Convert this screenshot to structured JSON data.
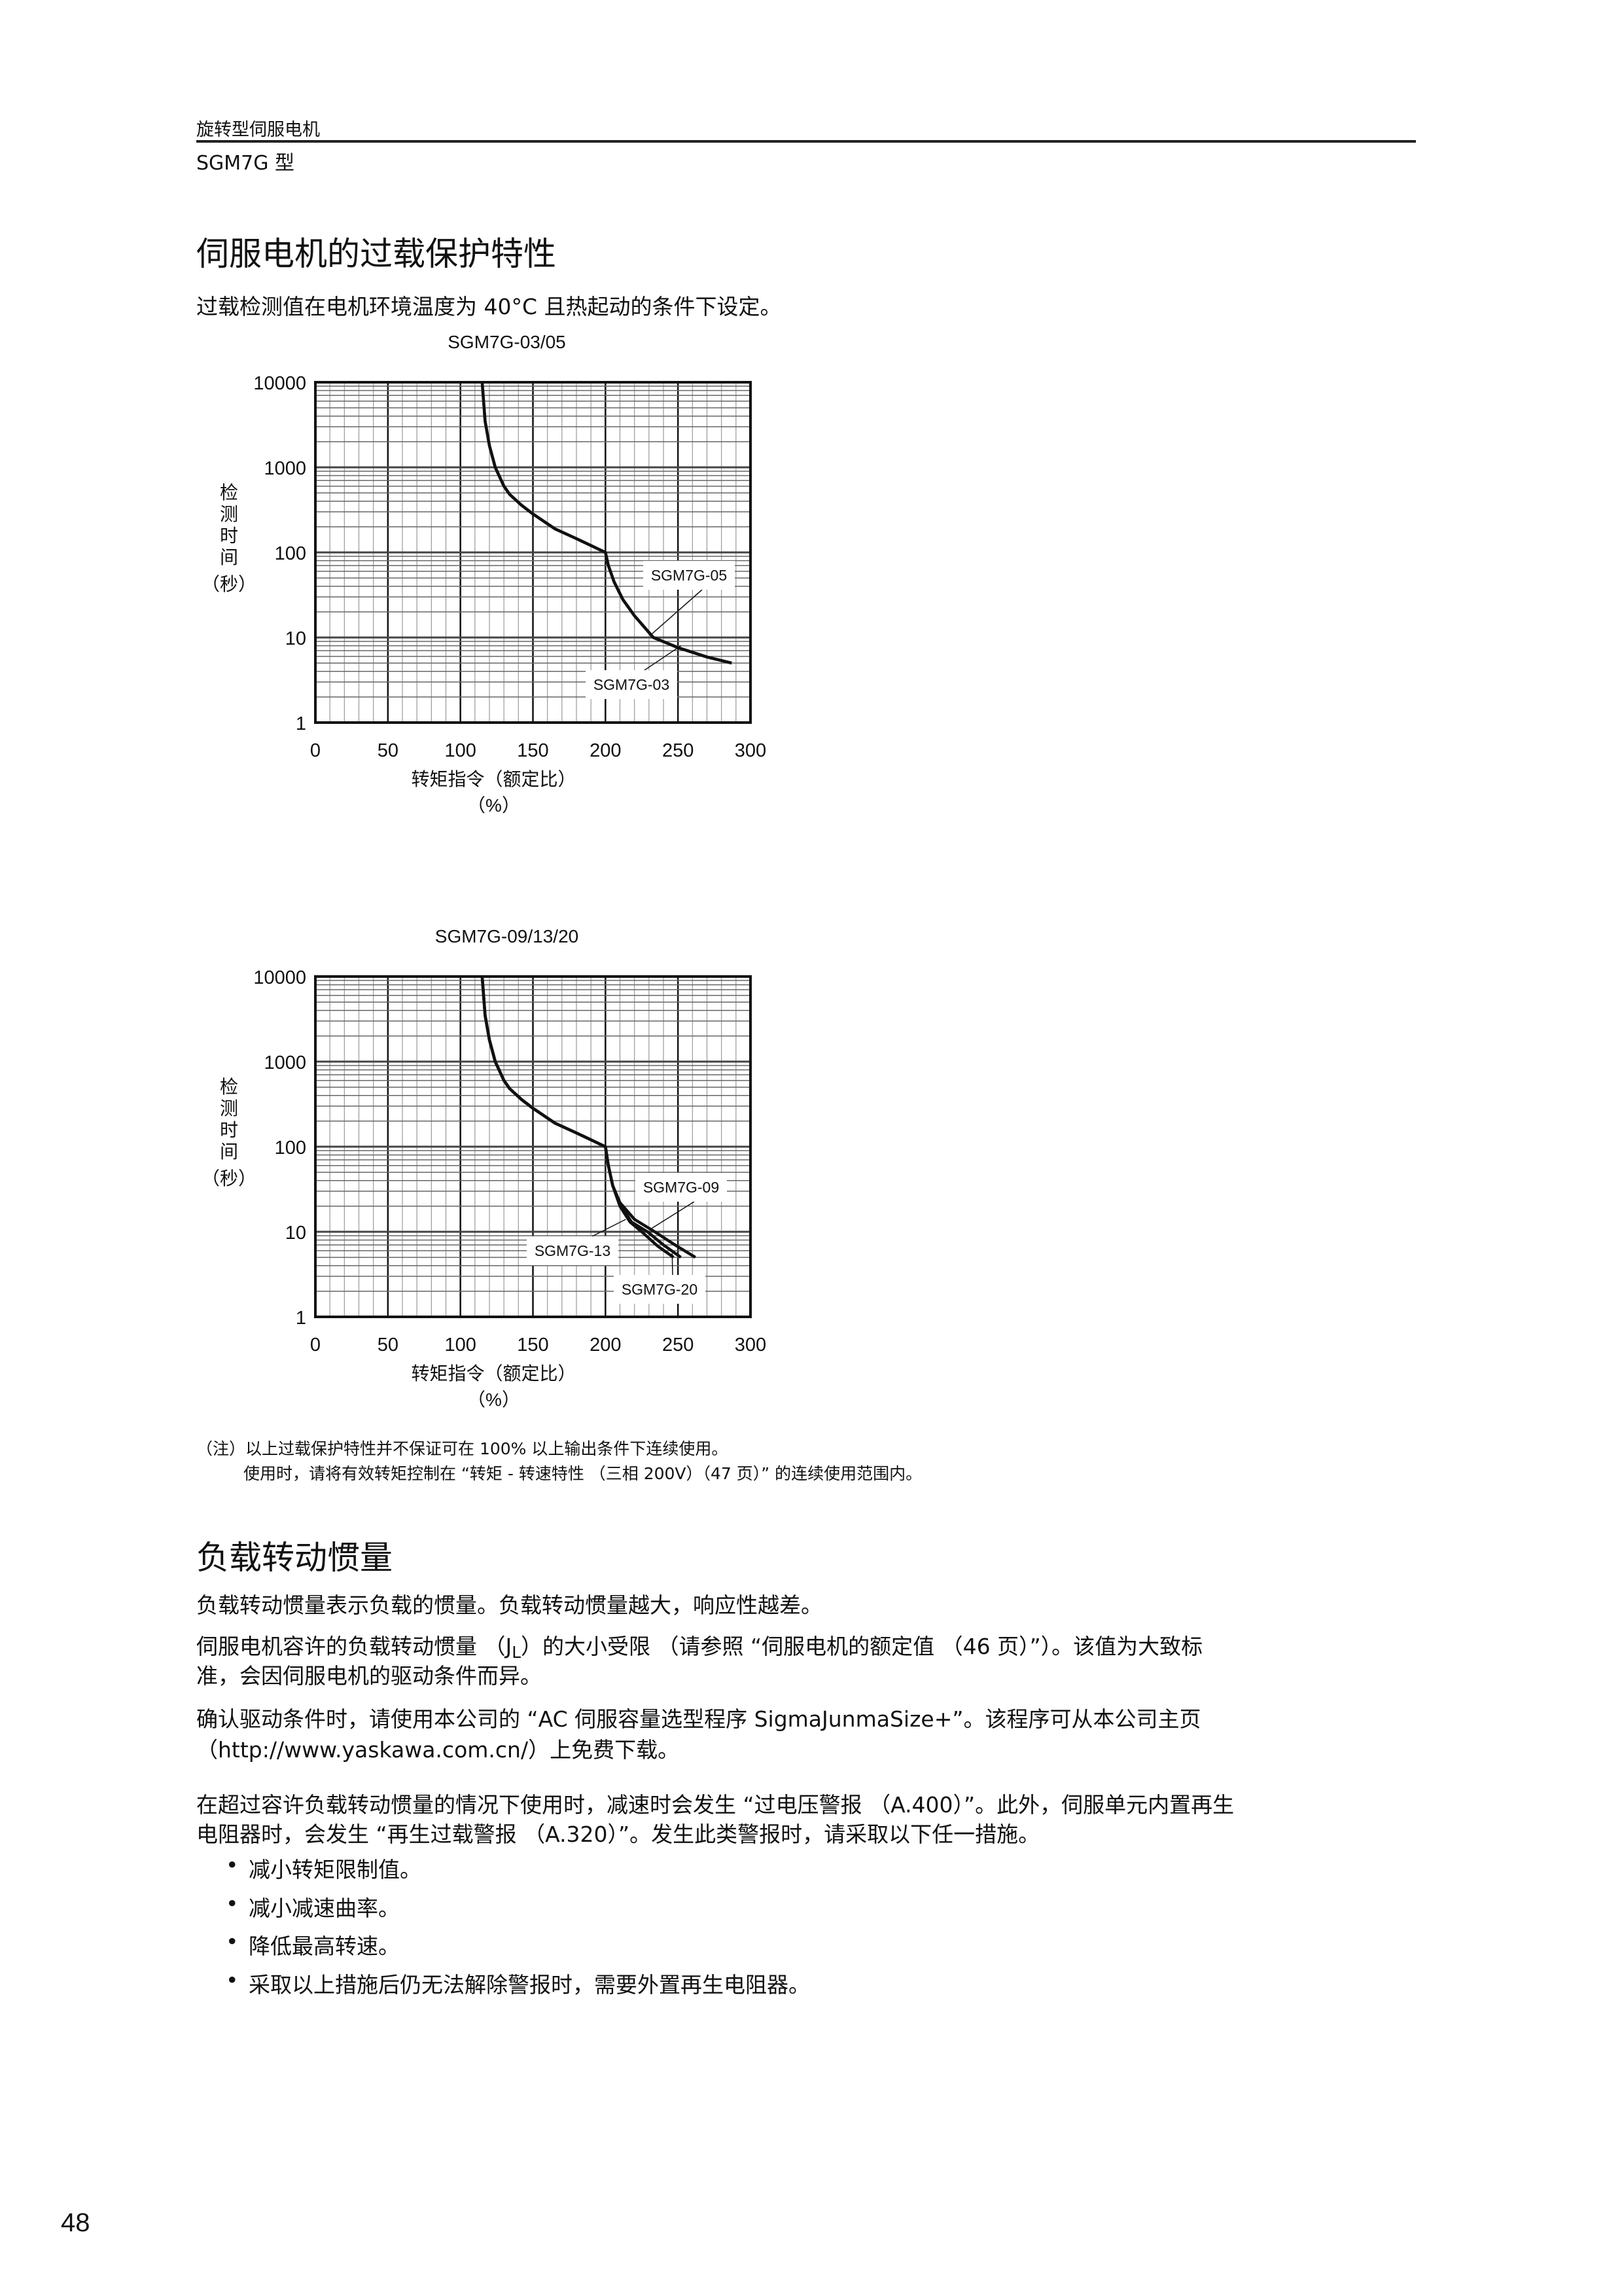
{
  "header": {
    "category": "旋转型伺服电机",
    "model": "SGM7G 型"
  },
  "section1": {
    "title": "伺服电机的过载保护特性",
    "intro": "过载检测值在电机环境温度为 40°C 且热起动的条件下设定。"
  },
  "chart_data": [
    {
      "type": "line",
      "title": "SGM7G-03/05",
      "xlabel": "转矩指令（额定比）",
      "xunit": "（%）",
      "ylabel": [
        "检",
        "测",
        "时",
        "间",
        "（秒）"
      ],
      "xlim": [
        0,
        300
      ],
      "ylim": [
        1,
        10000
      ],
      "yscale": "log",
      "grid": true,
      "xticks": [
        "0",
        "50",
        "100",
        "150",
        "200",
        "250",
        "300"
      ],
      "yticks": [
        "1",
        "10",
        "100",
        "1000",
        "10000"
      ],
      "series": [
        {
          "name": "SGM7G-03",
          "points": [
            [
              115,
              10000
            ],
            [
              117,
              3500
            ],
            [
              120,
              1800
            ],
            [
              124,
              1000
            ],
            [
              130,
              600
            ],
            [
              134,
              480
            ],
            [
              142,
              360
            ],
            [
              150,
              283
            ],
            [
              165,
              190
            ],
            [
              180,
              145
            ],
            [
              200,
              100
            ],
            [
              202,
              70
            ],
            [
              206,
              45
            ],
            [
              212,
              28
            ],
            [
              220,
              18
            ],
            [
              233,
              10
            ],
            [
              250,
              7.6
            ],
            [
              270,
              5.9
            ],
            [
              287,
              5
            ]
          ]
        },
        {
          "name": "SGM7G-05",
          "points": [
            [
              115,
              10000
            ],
            [
              117,
              3500
            ],
            [
              120,
              1800
            ],
            [
              124,
              1000
            ],
            [
              130,
              600
            ],
            [
              134,
              480
            ],
            [
              142,
              360
            ],
            [
              150,
              283
            ],
            [
              165,
              190
            ],
            [
              180,
              145
            ],
            [
              200,
              100
            ],
            [
              202,
              70
            ],
            [
              206,
              45
            ],
            [
              212,
              28
            ],
            [
              220,
              18
            ],
            [
              233,
              10
            ],
            [
              250,
              7.6
            ],
            [
              270,
              5.9
            ],
            [
              287,
              5
            ]
          ]
        }
      ]
    },
    {
      "type": "line",
      "title": "SGM7G-09/13/20",
      "xlabel": "转矩指令（额定比）",
      "xunit": "（%）",
      "ylabel": [
        "检",
        "测",
        "时",
        "间",
        "（秒）"
      ],
      "xlim": [
        0,
        300
      ],
      "ylim": [
        1,
        10000
      ],
      "yscale": "log",
      "grid": true,
      "xticks": [
        "0",
        "50",
        "100",
        "150",
        "200",
        "250",
        "300"
      ],
      "yticks": [
        "1",
        "10",
        "100",
        "1000",
        "10000"
      ],
      "series": [
        {
          "name": "SGM7G-09",
          "points": [
            [
              115,
              10000
            ],
            [
              117,
              3500
            ],
            [
              120,
              1800
            ],
            [
              124,
              1000
            ],
            [
              130,
              600
            ],
            [
              134,
              480
            ],
            [
              142,
              360
            ],
            [
              150,
              283
            ],
            [
              165,
              190
            ],
            [
              180,
              145
            ],
            [
              200,
              100
            ],
            [
              202,
              60
            ],
            [
              205,
              35
            ],
            [
              210,
              22
            ],
            [
              220,
              14
            ],
            [
              234,
              10
            ],
            [
              248,
              7
            ],
            [
              262,
              5
            ]
          ]
        },
        {
          "name": "SGM7G-13",
          "points": [
            [
              115,
              10000
            ],
            [
              117,
              3500
            ],
            [
              120,
              1800
            ],
            [
              124,
              1000
            ],
            [
              130,
              600
            ],
            [
              134,
              480
            ],
            [
              142,
              360
            ],
            [
              150,
              283
            ],
            [
              165,
              190
            ],
            [
              180,
              145
            ],
            [
              200,
              100
            ],
            [
              202,
              60
            ],
            [
              205,
              35
            ],
            [
              210,
              20
            ],
            [
              217,
              13
            ],
            [
              225,
              10
            ],
            [
              236,
              6.8
            ],
            [
              247,
              5
            ]
          ]
        },
        {
          "name": "SGM7G-20",
          "points": [
            [
              115,
              10000
            ],
            [
              117,
              3500
            ],
            [
              120,
              1800
            ],
            [
              124,
              1000
            ],
            [
              130,
              600
            ],
            [
              134,
              480
            ],
            [
              142,
              360
            ],
            [
              150,
              283
            ],
            [
              165,
              190
            ],
            [
              180,
              145
            ],
            [
              200,
              100
            ],
            [
              202,
              60
            ],
            [
              205,
              35
            ],
            [
              210,
              21
            ],
            [
              218,
              13
            ],
            [
              229,
              10
            ],
            [
              240,
              7
            ],
            [
              252,
              5
            ]
          ]
        }
      ]
    }
  ],
  "notes": [
    "（注）以上过载保护特性并不保证可在 100% 以上输出条件下连续使用。",
    "使用时，请将有效转矩控制在 “转矩 - 转速特性 （三相 200V）（47 页）” 的连续使用范围内。"
  ],
  "section2": {
    "title": "负载转动惯量",
    "p1": "负载转动惯量表示负载的惯量。负载转动惯量越大，响应性越差。",
    "p2a": "伺服电机容许的负载转动惯量 （",
    "p2_symbol": "J",
    "p2_sub": "L",
    "p2b": "）的大小受限 （请参照 “伺服电机的额定值 （46 页）”）。该值为大致标",
    "p2c": "准，会因伺服电机的驱动条件而异。",
    "p3a": "确认驱动条件时，请使用本公司的 “AC 伺服容量选型程序 SigmaJunmaSize+”。该程序可从本公司主页",
    "p3b": "（http://www.yaskawa.com.cn/）上免费下载。",
    "p4a": "在超过容许负载转动惯量的情况下使用时，减速时会发生 “过电压警报 （A.400）”。此外，伺服单元内置再生",
    "p4b": "电阻器时，会发生 “再生过载警报 （A.320）”。发生此类警报时，请采取以下任一措施。",
    "bullets": [
      "减小转矩限制值。",
      "减小减速曲率。",
      "降低最高转速。",
      "采取以上措施后仍无法解除警报时，需要外置再生电阻器。"
    ]
  },
  "page_number": "48"
}
